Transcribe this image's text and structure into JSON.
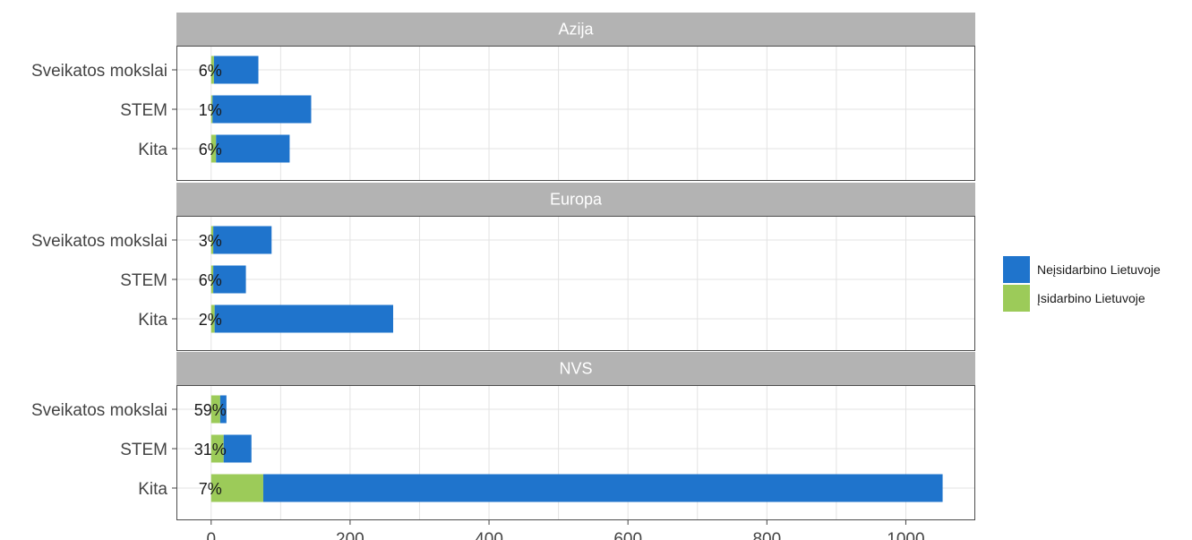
{
  "chart_data": {
    "type": "bar",
    "orientation": "horizontal",
    "stacked": true,
    "facets": [
      "Azija",
      "Europa",
      "NVS"
    ],
    "categories": [
      "Sveikatos mokslai",
      "STEM",
      "Kita"
    ],
    "series": [
      {
        "name": "Įsidarbino Lietuvoje",
        "color": "#9ccb59",
        "values": {
          "Azija": [
            4,
            2,
            7
          ],
          "Europa": [
            3,
            3,
            5
          ],
          "NVS": [
            13,
            18,
            75
          ]
        }
      },
      {
        "name": "Neįsidarbino Lietuvoje",
        "color": "#1f74cc",
        "values": {
          "Azija": [
            64,
            142,
            106
          ],
          "Europa": [
            84,
            47,
            257
          ],
          "NVS": [
            9,
            40,
            978
          ]
        }
      }
    ],
    "labels": {
      "Azija": [
        "6%",
        "1%",
        "6%"
      ],
      "Europa": [
        "3%",
        "6%",
        "2%"
      ],
      "NVS": [
        "59%",
        "31%",
        "7%"
      ]
    },
    "xlim": [
      -50,
      1100
    ],
    "xticks": [
      0,
      200,
      400,
      600,
      800,
      1000
    ],
    "grid": true,
    "legend_position": "right",
    "legend_order": [
      "Neįsidarbino Lietuvoje",
      "Įsidarbino Lietuvoje"
    ]
  }
}
